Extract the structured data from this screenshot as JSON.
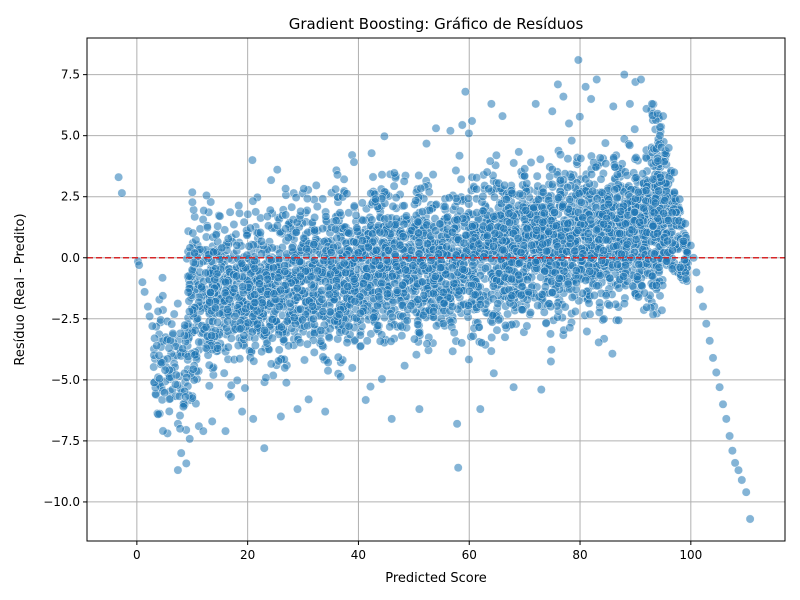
{
  "chart_data": {
    "type": "scatter",
    "title": "Gradient Boosting: Gráfico de Resíduos",
    "xlabel": "Predicted Score",
    "ylabel": "Resíduo (Real - Predito)",
    "xlim": [
      -9,
      117
    ],
    "ylim": [
      -11.6,
      9.0
    ],
    "xticks": [
      0,
      20,
      40,
      60,
      80,
      100
    ],
    "xtick_labels": [
      "0",
      "20",
      "40",
      "60",
      "80",
      "100"
    ],
    "yticks": [
      -10.0,
      -7.5,
      -5.0,
      -2.5,
      0.0,
      2.5,
      5.0,
      7.5
    ],
    "ytick_labels": [
      "−10.0",
      "−7.5",
      "−5.0",
      "−2.5",
      "0.0",
      "2.5",
      "5.0",
      "7.5"
    ],
    "grid": true,
    "reference_line": {
      "y": 0,
      "color": "#d62728",
      "style": "dashed"
    },
    "marker_color": "#1f77b4",
    "marker_alpha": 0.55,
    "points": [
      [
        -3.3,
        3.3
      ],
      [
        -2.7,
        2.65
      ],
      [
        0.2,
        -0.15
      ],
      [
        0.4,
        -0.3
      ],
      [
        1.0,
        -1.0
      ],
      [
        1.4,
        -1.4
      ],
      [
        2.0,
        -2.0
      ],
      [
        2.3,
        -2.4
      ],
      [
        2.8,
        -2.8
      ],
      [
        3.2,
        -3.3
      ],
      [
        3.6,
        -3.6
      ],
      [
        4.0,
        -4.0
      ],
      [
        4.5,
        -4.3
      ],
      [
        5.1,
        -4.6
      ],
      [
        5.8,
        -3.7
      ],
      [
        6.5,
        -3.1
      ],
      [
        7.1,
        -4.8
      ],
      [
        7.4,
        -6.8
      ],
      [
        7.8,
        -7.0
      ],
      [
        8.0,
        -8.0
      ],
      [
        8.4,
        -6.1
      ],
      [
        8.8,
        -5.7
      ],
      [
        9.0,
        -4.9
      ],
      [
        9.6,
        0.1
      ],
      [
        10.4,
        0.2
      ],
      [
        11.2,
        -6.9
      ],
      [
        12.0,
        -7.1
      ],
      [
        13.6,
        -6.7
      ],
      [
        16.0,
        -7.1
      ],
      [
        17.0,
        -5.7
      ],
      [
        19.0,
        -6.3
      ],
      [
        21.0,
        -6.6
      ],
      [
        23.0,
        -7.8
      ],
      [
        26.0,
        -6.5
      ],
      [
        29.0,
        -6.2
      ],
      [
        31.0,
        -5.8
      ],
      [
        34.0,
        -6.3
      ],
      [
        46.0,
        -6.6
      ],
      [
        51.0,
        -6.2
      ],
      [
        57.8,
        -6.8
      ],
      [
        58.0,
        -8.6
      ],
      [
        62.0,
        -6.2
      ],
      [
        68.0,
        -5.3
      ],
      [
        73.0,
        -5.4
      ],
      [
        59.3,
        6.8
      ],
      [
        60.5,
        5.6
      ],
      [
        56.6,
        5.2
      ],
      [
        54.0,
        5.3
      ],
      [
        64.0,
        6.3
      ],
      [
        66.0,
        5.8
      ],
      [
        72.0,
        6.3
      ],
      [
        75.0,
        6.0
      ],
      [
        76.0,
        7.1
      ],
      [
        77.0,
        6.6
      ],
      [
        78.0,
        5.5
      ],
      [
        79.7,
        8.1
      ],
      [
        81.0,
        7.0
      ],
      [
        82.0,
        6.5
      ],
      [
        83.0,
        7.3
      ],
      [
        86.0,
        6.2
      ],
      [
        88.0,
        7.5
      ],
      [
        89.0,
        6.3
      ],
      [
        90.0,
        7.2
      ],
      [
        91.0,
        7.3
      ],
      [
        92.0,
        6.1
      ],
      [
        93.0,
        6.3
      ],
      [
        94.0,
        5.9
      ],
      [
        95.0,
        5.8
      ],
      [
        96.0,
        4.5
      ],
      [
        97.0,
        3.5
      ],
      [
        98.0,
        2.4
      ],
      [
        99.0,
        1.4
      ],
      [
        100.0,
        0.5
      ],
      [
        100.5,
        0.0
      ],
      [
        101.0,
        -0.6
      ],
      [
        101.6,
        -1.3
      ],
      [
        102.2,
        -2.0
      ],
      [
        102.8,
        -2.7
      ],
      [
        103.4,
        -3.4
      ],
      [
        104.0,
        -4.1
      ],
      [
        104.6,
        -4.7
      ],
      [
        105.2,
        -5.3
      ],
      [
        105.8,
        -6.0
      ],
      [
        106.4,
        -6.6
      ],
      [
        107.0,
        -7.3
      ],
      [
        107.5,
        -7.9
      ],
      [
        108.0,
        -8.4
      ],
      [
        108.6,
        -8.7
      ],
      [
        109.2,
        -9.1
      ],
      [
        110.0,
        -9.6
      ],
      [
        110.7,
        -10.7
      ]
    ]
  }
}
